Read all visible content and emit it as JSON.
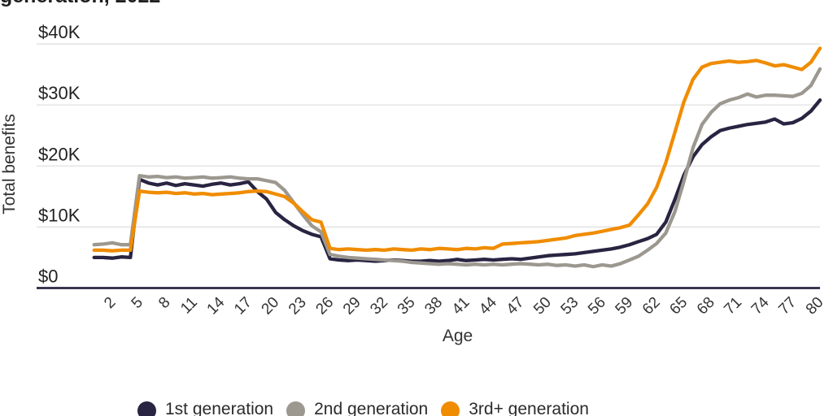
{
  "title_fragment": "generation, 2022",
  "colors": {
    "grid": "#E6E6E6",
    "axis": "#2B2740",
    "tick_text": "#333333",
    "label_text": "#222222"
  },
  "chart_data": {
    "type": "line",
    "title_visible_fragment": "generation, 2022",
    "xlabel": "Age",
    "ylabel": "Total benefits",
    "units": "thousand USD per year of age",
    "x_start_age": 0,
    "xlim": [
      0,
      80
    ],
    "ylim_k": [
      0,
      40
    ],
    "grid": "horizontal gridlines only, dark baseline at $0",
    "legend_position": "bottom",
    "y_tick_values_k": [
      0,
      10,
      20,
      30,
      40
    ],
    "y_tick_labels": [
      "$0",
      "$10K",
      "$20K",
      "$30K",
      "$40K"
    ],
    "x_tick_values": [
      2,
      5,
      8,
      11,
      14,
      17,
      20,
      23,
      26,
      29,
      32,
      35,
      38,
      41,
      44,
      47,
      50,
      53,
      56,
      59,
      62,
      65,
      68,
      71,
      74,
      77,
      80
    ],
    "series": [
      {
        "name": "1st generation",
        "color": "#282441",
        "values_k": [
          5.0,
          5.0,
          4.9,
          5.1,
          5.0,
          17.8,
          17.2,
          16.9,
          17.2,
          16.8,
          17.1,
          16.9,
          16.7,
          17.0,
          17.2,
          16.9,
          17.1,
          17.4,
          15.8,
          14.6,
          12.4,
          11.2,
          10.2,
          9.4,
          8.8,
          8.4,
          4.8,
          4.6,
          4.5,
          4.6,
          4.5,
          4.4,
          4.5,
          4.6,
          4.5,
          4.4,
          4.4,
          4.5,
          4.4,
          4.5,
          4.7,
          4.5,
          4.6,
          4.7,
          4.6,
          4.7,
          4.8,
          4.7,
          4.9,
          5.1,
          5.3,
          5.4,
          5.5,
          5.6,
          5.8,
          6.0,
          6.2,
          6.4,
          6.7,
          7.1,
          7.6,
          8.1,
          8.8,
          10.8,
          14.5,
          18.5,
          21.5,
          23.5,
          24.8,
          25.8,
          26.2,
          26.5,
          26.8,
          27.0,
          27.2,
          27.7,
          26.9,
          27.1,
          27.8,
          29.0,
          30.8
        ]
      },
      {
        "name": "2nd generation",
        "color": "#9C9890",
        "values_k": [
          7.1,
          7.2,
          7.4,
          7.1,
          7.1,
          18.4,
          18.2,
          18.3,
          18.1,
          18.2,
          18.0,
          18.1,
          18.2,
          18.0,
          18.1,
          18.2,
          18.0,
          17.9,
          17.9,
          17.6,
          17.3,
          16.0,
          14.0,
          12.0,
          10.2,
          9.2,
          5.5,
          5.2,
          5.0,
          4.9,
          4.8,
          4.7,
          4.6,
          4.5,
          4.4,
          4.2,
          4.1,
          4.0,
          3.9,
          4.0,
          3.9,
          3.8,
          3.9,
          3.8,
          3.9,
          3.8,
          3.9,
          4.0,
          3.9,
          3.8,
          3.9,
          3.7,
          3.8,
          3.6,
          3.8,
          3.5,
          3.8,
          3.6,
          4.0,
          4.6,
          5.2,
          6.2,
          7.3,
          9.0,
          12.5,
          17.5,
          23.0,
          26.8,
          28.8,
          30.2,
          30.8,
          31.2,
          31.8,
          31.3,
          31.6,
          31.6,
          31.5,
          31.4,
          31.9,
          33.2,
          35.9
        ]
      },
      {
        "name": "3rd+ generation",
        "color": "#F08C00",
        "values_k": [
          6.2,
          6.2,
          6.1,
          6.2,
          6.2,
          15.9,
          15.7,
          15.6,
          15.7,
          15.5,
          15.6,
          15.4,
          15.5,
          15.3,
          15.4,
          15.5,
          15.6,
          15.8,
          15.9,
          15.8,
          15.4,
          15.0,
          13.9,
          12.5,
          11.2,
          10.8,
          6.5,
          6.3,
          6.4,
          6.3,
          6.2,
          6.3,
          6.2,
          6.4,
          6.3,
          6.2,
          6.4,
          6.3,
          6.5,
          6.4,
          6.3,
          6.5,
          6.4,
          6.6,
          6.5,
          7.2,
          7.3,
          7.4,
          7.5,
          7.6,
          7.8,
          8.0,
          8.2,
          8.6,
          8.8,
          9.0,
          9.3,
          9.6,
          9.9,
          10.3,
          12.0,
          13.8,
          16.5,
          20.5,
          25.5,
          30.5,
          34.2,
          36.2,
          36.8,
          37.0,
          37.2,
          37.0,
          37.1,
          37.3,
          36.9,
          36.4,
          36.6,
          36.2,
          35.8,
          37.0,
          39.3
        ]
      }
    ]
  }
}
